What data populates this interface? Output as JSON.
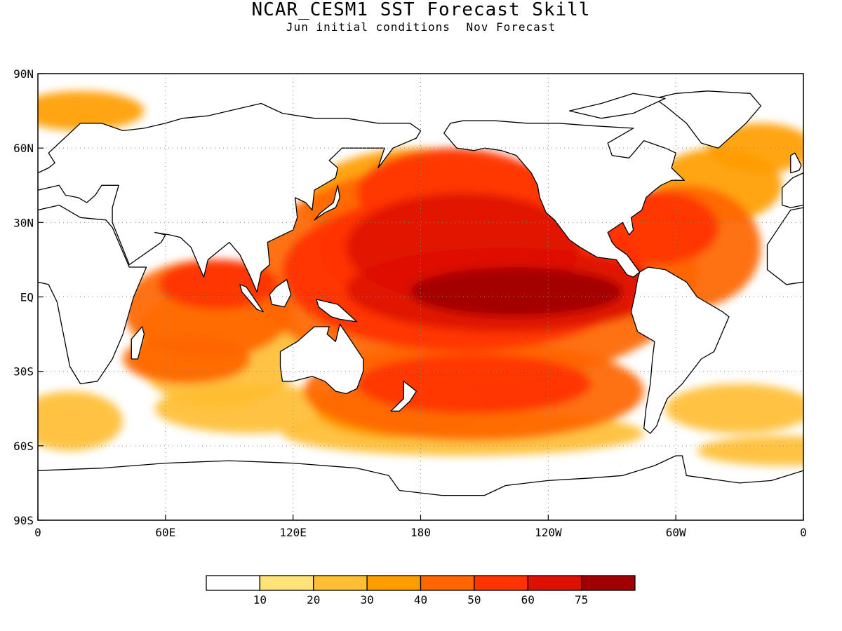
{
  "title": "NCAR_CESM1 SST Forecast Skill",
  "subtitle": {
    "left": "Jun initial conditions",
    "right": "Nov Forecast"
  },
  "axes": {
    "x_ticks": [
      {
        "lon": 0,
        "label": "0"
      },
      {
        "lon": 60,
        "label": "60E"
      },
      {
        "lon": 120,
        "label": "120E"
      },
      {
        "lon": 180,
        "label": "180"
      },
      {
        "lon": 240,
        "label": "120W"
      },
      {
        "lon": 300,
        "label": "60W"
      },
      {
        "lon": 360,
        "label": "0"
      }
    ],
    "y_ticks": [
      {
        "lat": 90,
        "label": "90N"
      },
      {
        "lat": 60,
        "label": "60N"
      },
      {
        "lat": 30,
        "label": "30N"
      },
      {
        "lat": 0,
        "label": "EQ"
      },
      {
        "lat": -30,
        "label": "30S"
      },
      {
        "lat": -60,
        "label": "60S"
      },
      {
        "lat": -90,
        "label": "90S"
      }
    ],
    "xlim": [
      0,
      360
    ],
    "ylim": [
      -90,
      90
    ],
    "grid": "dotted"
  },
  "colorbar": {
    "colors": [
      "#ffffff",
      "#ffe377",
      "#ffbe33",
      "#ff9d00",
      "#ff6600",
      "#ff3300",
      "#dd1100",
      "#a00000"
    ],
    "labels": [
      "10",
      "20",
      "30",
      "40",
      "50",
      "60",
      "75"
    ]
  },
  "skill_regions": [
    {
      "lon": 225,
      "lat": 2,
      "rx": 50,
      "ry": 10,
      "level": 7
    },
    {
      "lon": 220,
      "lat": 3,
      "rx": 75,
      "ry": 17,
      "level": 6
    },
    {
      "lon": 200,
      "lat": 20,
      "rx": 55,
      "ry": 22,
      "level": 6
    },
    {
      "lon": 200,
      "lat": 10,
      "rx": 85,
      "ry": 32,
      "level": 5
    },
    {
      "lon": 195,
      "lat": 42,
      "rx": 45,
      "ry": 18,
      "level": 5
    },
    {
      "lon": 165,
      "lat": 18,
      "rx": 32,
      "ry": 18,
      "level": 5
    },
    {
      "lon": 205,
      "lat": 10,
      "rx": 105,
      "ry": 45,
      "level": 4
    },
    {
      "lon": 180,
      "lat": 38,
      "rx": 55,
      "ry": 22,
      "level": 3
    },
    {
      "lon": 205,
      "lat": -35,
      "rx": 55,
      "ry": 12,
      "level": 5
    },
    {
      "lon": 205,
      "lat": -38,
      "rx": 80,
      "ry": 20,
      "level": 4
    },
    {
      "lon": 170,
      "lat": -45,
      "rx": 40,
      "ry": 12,
      "level": 3
    },
    {
      "lon": 200,
      "lat": -55,
      "rx": 85,
      "ry": 9,
      "level": 2
    },
    {
      "lon": 85,
      "lat": 5,
      "rx": 28,
      "ry": 10,
      "level": 5
    },
    {
      "lon": 80,
      "lat": -5,
      "rx": 40,
      "ry": 20,
      "level": 4
    },
    {
      "lon": 70,
      "lat": -25,
      "rx": 30,
      "ry": 10,
      "level": 4
    },
    {
      "lon": 85,
      "lat": -20,
      "rx": 40,
      "ry": 25,
      "level": 2
    },
    {
      "lon": 100,
      "lat": -45,
      "rx": 45,
      "ry": 10,
      "level": 2
    },
    {
      "lon": 290,
      "lat": 28,
      "rx": 30,
      "ry": 15,
      "level": 5
    },
    {
      "lon": 305,
      "lat": 20,
      "rx": 35,
      "ry": 25,
      "level": 4
    },
    {
      "lon": 320,
      "lat": 45,
      "rx": 30,
      "ry": 15,
      "level": 3
    },
    {
      "lon": 340,
      "lat": 60,
      "rx": 25,
      "ry": 10,
      "level": 3
    },
    {
      "lon": 20,
      "lat": 75,
      "rx": 30,
      "ry": 8,
      "level": 3
    },
    {
      "lon": 330,
      "lat": -45,
      "rx": 35,
      "ry": 10,
      "level": 2
    },
    {
      "lon": 15,
      "lat": -50,
      "rx": 25,
      "ry": 12,
      "level": 2
    },
    {
      "lon": 350,
      "lat": -62,
      "rx": 40,
      "ry": 6,
      "level": 2
    }
  ]
}
